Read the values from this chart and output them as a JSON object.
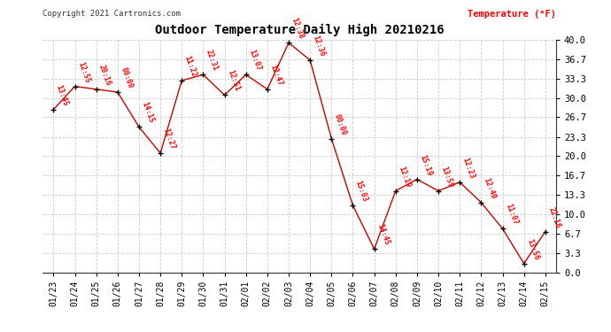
{
  "title": "Outdoor Temperature Daily High 20210216",
  "copyright": "Copyright 2021 Cartronics.com",
  "ylabel": "Temperature (°F)",
  "ylabel_color": "#ff0000",
  "background_color": "#ffffff",
  "grid_color": "#cccccc",
  "line_color": "#cc0000",
  "marker_color": "#000000",
  "label_color": "#ff0000",
  "dates": [
    "01/23",
    "01/24",
    "01/25",
    "01/26",
    "01/27",
    "01/28",
    "01/29",
    "01/30",
    "01/31",
    "02/01",
    "02/02",
    "02/03",
    "02/04",
    "02/05",
    "02/06",
    "02/07",
    "02/08",
    "02/09",
    "02/10",
    "02/11",
    "02/12",
    "02/13",
    "02/14",
    "02/15"
  ],
  "temps": [
    28.0,
    32.0,
    31.5,
    31.0,
    25.0,
    20.5,
    33.0,
    34.0,
    30.5,
    34.0,
    31.5,
    39.5,
    36.5,
    23.0,
    11.5,
    4.0,
    14.0,
    16.0,
    14.0,
    15.5,
    12.0,
    7.5,
    1.5,
    7.0
  ],
  "times": [
    "13:45",
    "12:55",
    "20:16",
    "00:00",
    "14:15",
    "12:27",
    "11:22",
    "22:31",
    "12:51",
    "13:07",
    "12:47",
    "12:38",
    "12:36",
    "00:00",
    "15:03",
    "14:45",
    "12:19",
    "15:19",
    "13:59",
    "12:23",
    "12:40",
    "11:07",
    "13:56",
    "22:16"
  ],
  "ylim": [
    0.0,
    40.0
  ],
  "yticks": [
    0.0,
    3.3,
    6.7,
    10.0,
    13.3,
    16.7,
    20.0,
    23.3,
    26.7,
    30.0,
    33.3,
    36.7,
    40.0
  ],
  "ytick_labels": [
    "0.0",
    "3.3",
    "6.7",
    "10.0",
    "13.3",
    "16.7",
    "20.0",
    "23.3",
    "26.7",
    "30.0",
    "33.3",
    "36.7",
    "40.0"
  ]
}
